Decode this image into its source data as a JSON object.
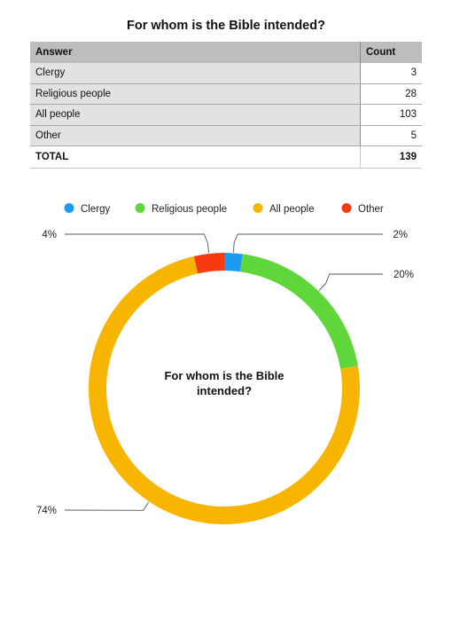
{
  "title": "For whom is the Bible intended?",
  "table": {
    "headers": [
      "Answer",
      "Count"
    ],
    "rows": [
      {
        "answer": "Clergy",
        "count": "3"
      },
      {
        "answer": "Religious people",
        "count": "28"
      },
      {
        "answer": "All people",
        "count": "103"
      },
      {
        "answer": "Other",
        "count": "5"
      }
    ],
    "total_label": "TOTAL",
    "total_value": "139"
  },
  "chart_data": {
    "type": "pie",
    "title": "For whom is the Bible intended?",
    "center_label": [
      "For whom is the Bible",
      "intended?"
    ],
    "legend_position": "top",
    "categories": [
      "Clergy",
      "Religious people",
      "All people",
      "Other"
    ],
    "values": [
      3,
      28,
      103,
      5
    ],
    "percent_labels": [
      "2%",
      "20%",
      "74%",
      "4%"
    ],
    "colors": [
      "#1a9bf0",
      "#5fd63a",
      "#f7b500",
      "#f73a10"
    ]
  }
}
